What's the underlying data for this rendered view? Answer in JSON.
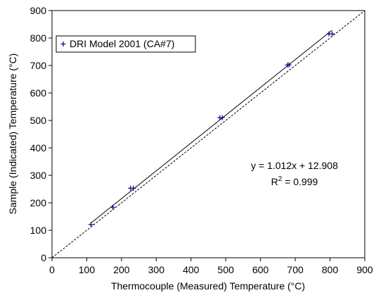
{
  "chart_data": {
    "type": "scatter",
    "xlabel": "Thermocouple (Measured) Temperature (°C)",
    "ylabel": "Sample (Indicated) Temperature (°C)",
    "xlim": [
      0,
      900
    ],
    "ylim": [
      0,
      900
    ],
    "xticks": [
      "0",
      "100",
      "200",
      "300",
      "400",
      "500",
      "600",
      "700",
      "800",
      "900"
    ],
    "yticks": [
      "0",
      "100",
      "200",
      "300",
      "400",
      "500",
      "600",
      "700",
      "800",
      "900"
    ],
    "grid": false,
    "legend_position": "top-left",
    "series": [
      {
        "name": "DRI Model 2001 (CA#7)",
        "marker": "+",
        "color": "#00008b",
        "x": [
          112,
          175,
          226,
          234,
          483,
          490,
          678,
          682,
          797,
          806
        ],
        "y": [
          121,
          184,
          253,
          253,
          510,
          510,
          702,
          702,
          815,
          815
        ]
      }
    ],
    "fit_line": {
      "slope": 1.012,
      "intercept": 12.908,
      "x_range": [
        112,
        806
      ],
      "color": "#000000"
    },
    "reference_line": {
      "slope": 1,
      "intercept": 0,
      "x_range": [
        0,
        900
      ],
      "dashed": true,
      "color": "#000000"
    },
    "annotations": {
      "equation": "y = 1.012x + 12.908",
      "r2_prefix": "R",
      "r2_sup": "2",
      "r2_suffix": " = 0.999"
    }
  }
}
